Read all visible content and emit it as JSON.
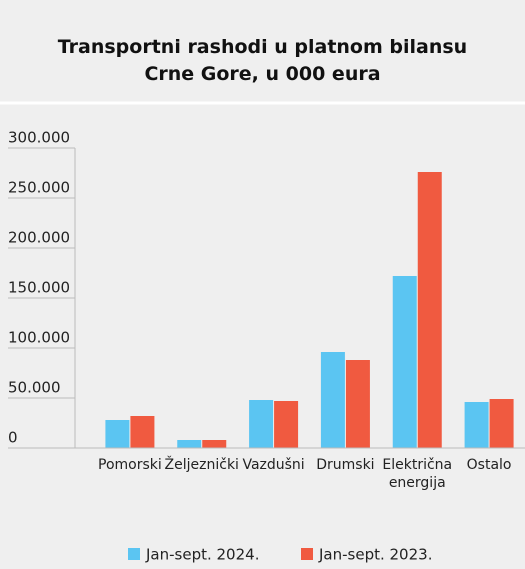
{
  "chart_data": {
    "type": "bar",
    "title": "Transportni rashodi u platnom bilansu Crne Gore, u 000 eura",
    "categories": [
      "Pomorski",
      "Željeznički",
      "Vazdušni",
      "Drumski",
      "Električna energija",
      "Ostalo"
    ],
    "series": [
      {
        "name": "Jan-sept. 2024.",
        "color": "#5bc5f2",
        "values": [
          28000,
          8000,
          48000,
          96000,
          172000,
          46000
        ]
      },
      {
        "name": "Jan-sept. 2023.",
        "color": "#f05a40",
        "values": [
          32000,
          8000,
          47000,
          88000,
          276000,
          49000
        ]
      }
    ],
    "ylim": [
      0,
      300000
    ],
    "yticks": [
      0,
      {
        "value": 50000,
        "label": "50.000"
      },
      {
        "value": 100000,
        "label": "100.000"
      },
      {
        "value": 150000,
        "label": "150.000"
      },
      {
        "value": 200000,
        "label": "200.000"
      },
      {
        "value": 250000,
        "label": "250.000"
      },
      {
        "value": 300000,
        "label": "300.000"
      }
    ],
    "legend": "bottom"
  }
}
